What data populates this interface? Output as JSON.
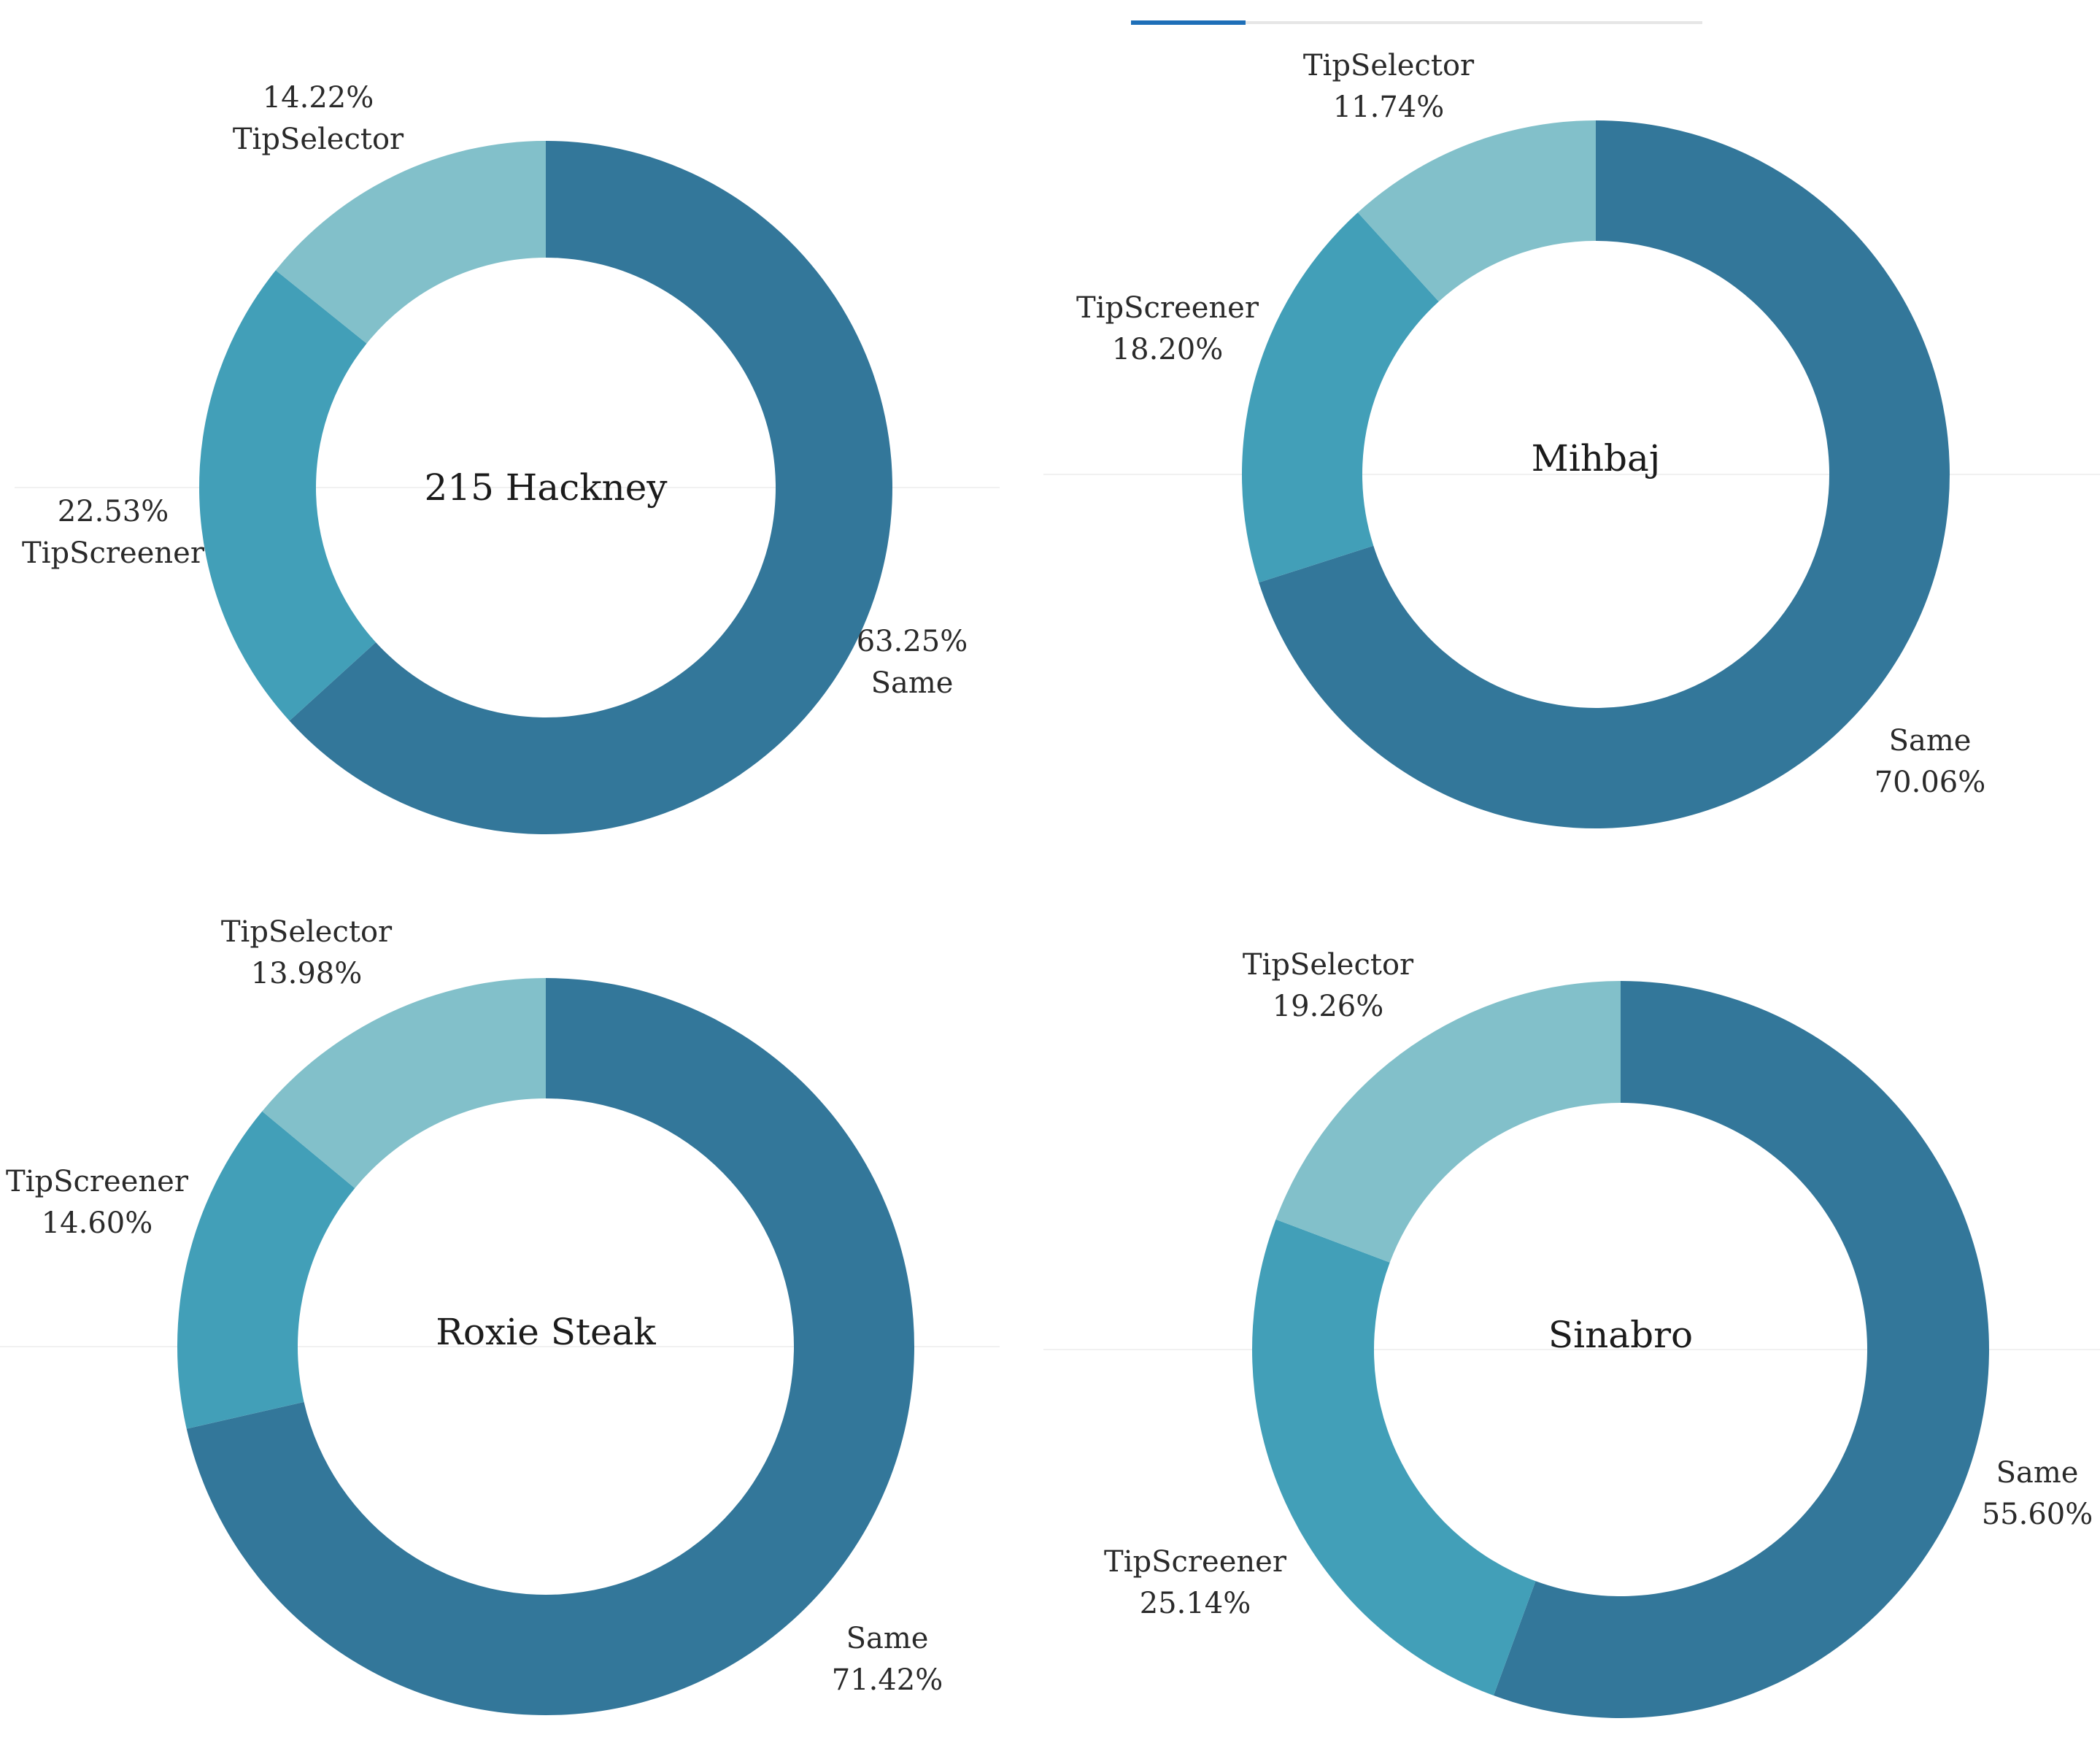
{
  "chart_data": [
    {
      "type": "donut",
      "title": "215 Hackney",
      "categories": [
        "Same",
        "TipScreener",
        "TipSelector"
      ],
      "values": [
        63.25,
        22.53,
        14.22
      ],
      "labels": [
        {
          "category": "Same",
          "percent": "63.25%",
          "order": "value-first"
        },
        {
          "category": "TipScreener",
          "percent": "22.53%",
          "order": "value-first"
        },
        {
          "category": "TipSelector",
          "percent": "14.22%",
          "order": "value-first"
        }
      ]
    },
    {
      "type": "donut",
      "title": "Mihbaj",
      "categories": [
        "Same",
        "TipScreener",
        "TipSelector"
      ],
      "values": [
        70.06,
        18.2,
        11.74
      ],
      "labels": [
        {
          "category": "Same",
          "percent": "70.06%",
          "order": "name-first"
        },
        {
          "category": "TipScreener",
          "percent": "18.20%",
          "order": "name-first"
        },
        {
          "category": "TipSelector",
          "percent": "11.74%",
          "order": "name-first"
        }
      ]
    },
    {
      "type": "donut",
      "title": "Roxie Steak",
      "categories": [
        "Same",
        "TipScreener",
        "TipSelector"
      ],
      "values": [
        71.42,
        14.6,
        13.98
      ],
      "labels": [
        {
          "category": "Same",
          "percent": "71.42%",
          "order": "name-first"
        },
        {
          "category": "TipScreener",
          "percent": "14.60%",
          "order": "name-first"
        },
        {
          "category": "TipSelector",
          "percent": "13.98%",
          "order": "name-first"
        }
      ]
    },
    {
      "type": "donut",
      "title": "Sinabro",
      "categories": [
        "Same",
        "TipScreener",
        "TipSelector"
      ],
      "values": [
        55.6,
        25.14,
        19.26
      ],
      "labels": [
        {
          "category": "Same",
          "percent": "55.60%",
          "order": "name-first"
        },
        {
          "category": "TipScreener",
          "percent": "25.14%",
          "order": "name-first"
        },
        {
          "category": "TipSelector",
          "percent": "19.26%",
          "order": "name-first"
        }
      ]
    }
  ],
  "colors": {
    "Same": "#33779a",
    "TipScreener": "#429fb8",
    "TipSelector": "#82c0ca",
    "tab_indicator": "#1e6fb8",
    "tab_track": "#e6e6e6"
  }
}
